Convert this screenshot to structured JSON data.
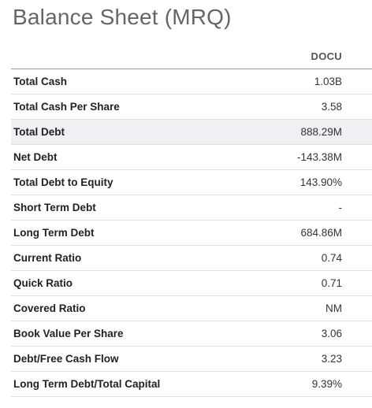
{
  "title": "Balance Sheet (MRQ)",
  "table": {
    "column_header": "DOCU",
    "rows": [
      {
        "label": "Total Cash",
        "value": "1.03B",
        "highlighted": false
      },
      {
        "label": "Total Cash Per Share",
        "value": "3.58",
        "highlighted": false
      },
      {
        "label": "Total Debt",
        "value": "888.29M",
        "highlighted": true
      },
      {
        "label": "Net Debt",
        "value": "-143.38M",
        "highlighted": false
      },
      {
        "label": "Total Debt to Equity",
        "value": "143.90%",
        "highlighted": false
      },
      {
        "label": "Short Term Debt",
        "value": "-",
        "highlighted": false
      },
      {
        "label": "Long Term Debt",
        "value": "684.86M",
        "highlighted": false
      },
      {
        "label": "Current Ratio",
        "value": "0.74",
        "highlighted": false
      },
      {
        "label": "Quick Ratio",
        "value": "0.71",
        "highlighted": false
      },
      {
        "label": "Covered Ratio",
        "value": "NM",
        "highlighted": false
      },
      {
        "label": "Book Value Per Share",
        "value": "3.06",
        "highlighted": false
      },
      {
        "label": "Debt/Free Cash Flow",
        "value": "3.23",
        "highlighted": false
      },
      {
        "label": "Long Term Debt/Total Capital",
        "value": "9.39%",
        "highlighted": false
      }
    ]
  }
}
